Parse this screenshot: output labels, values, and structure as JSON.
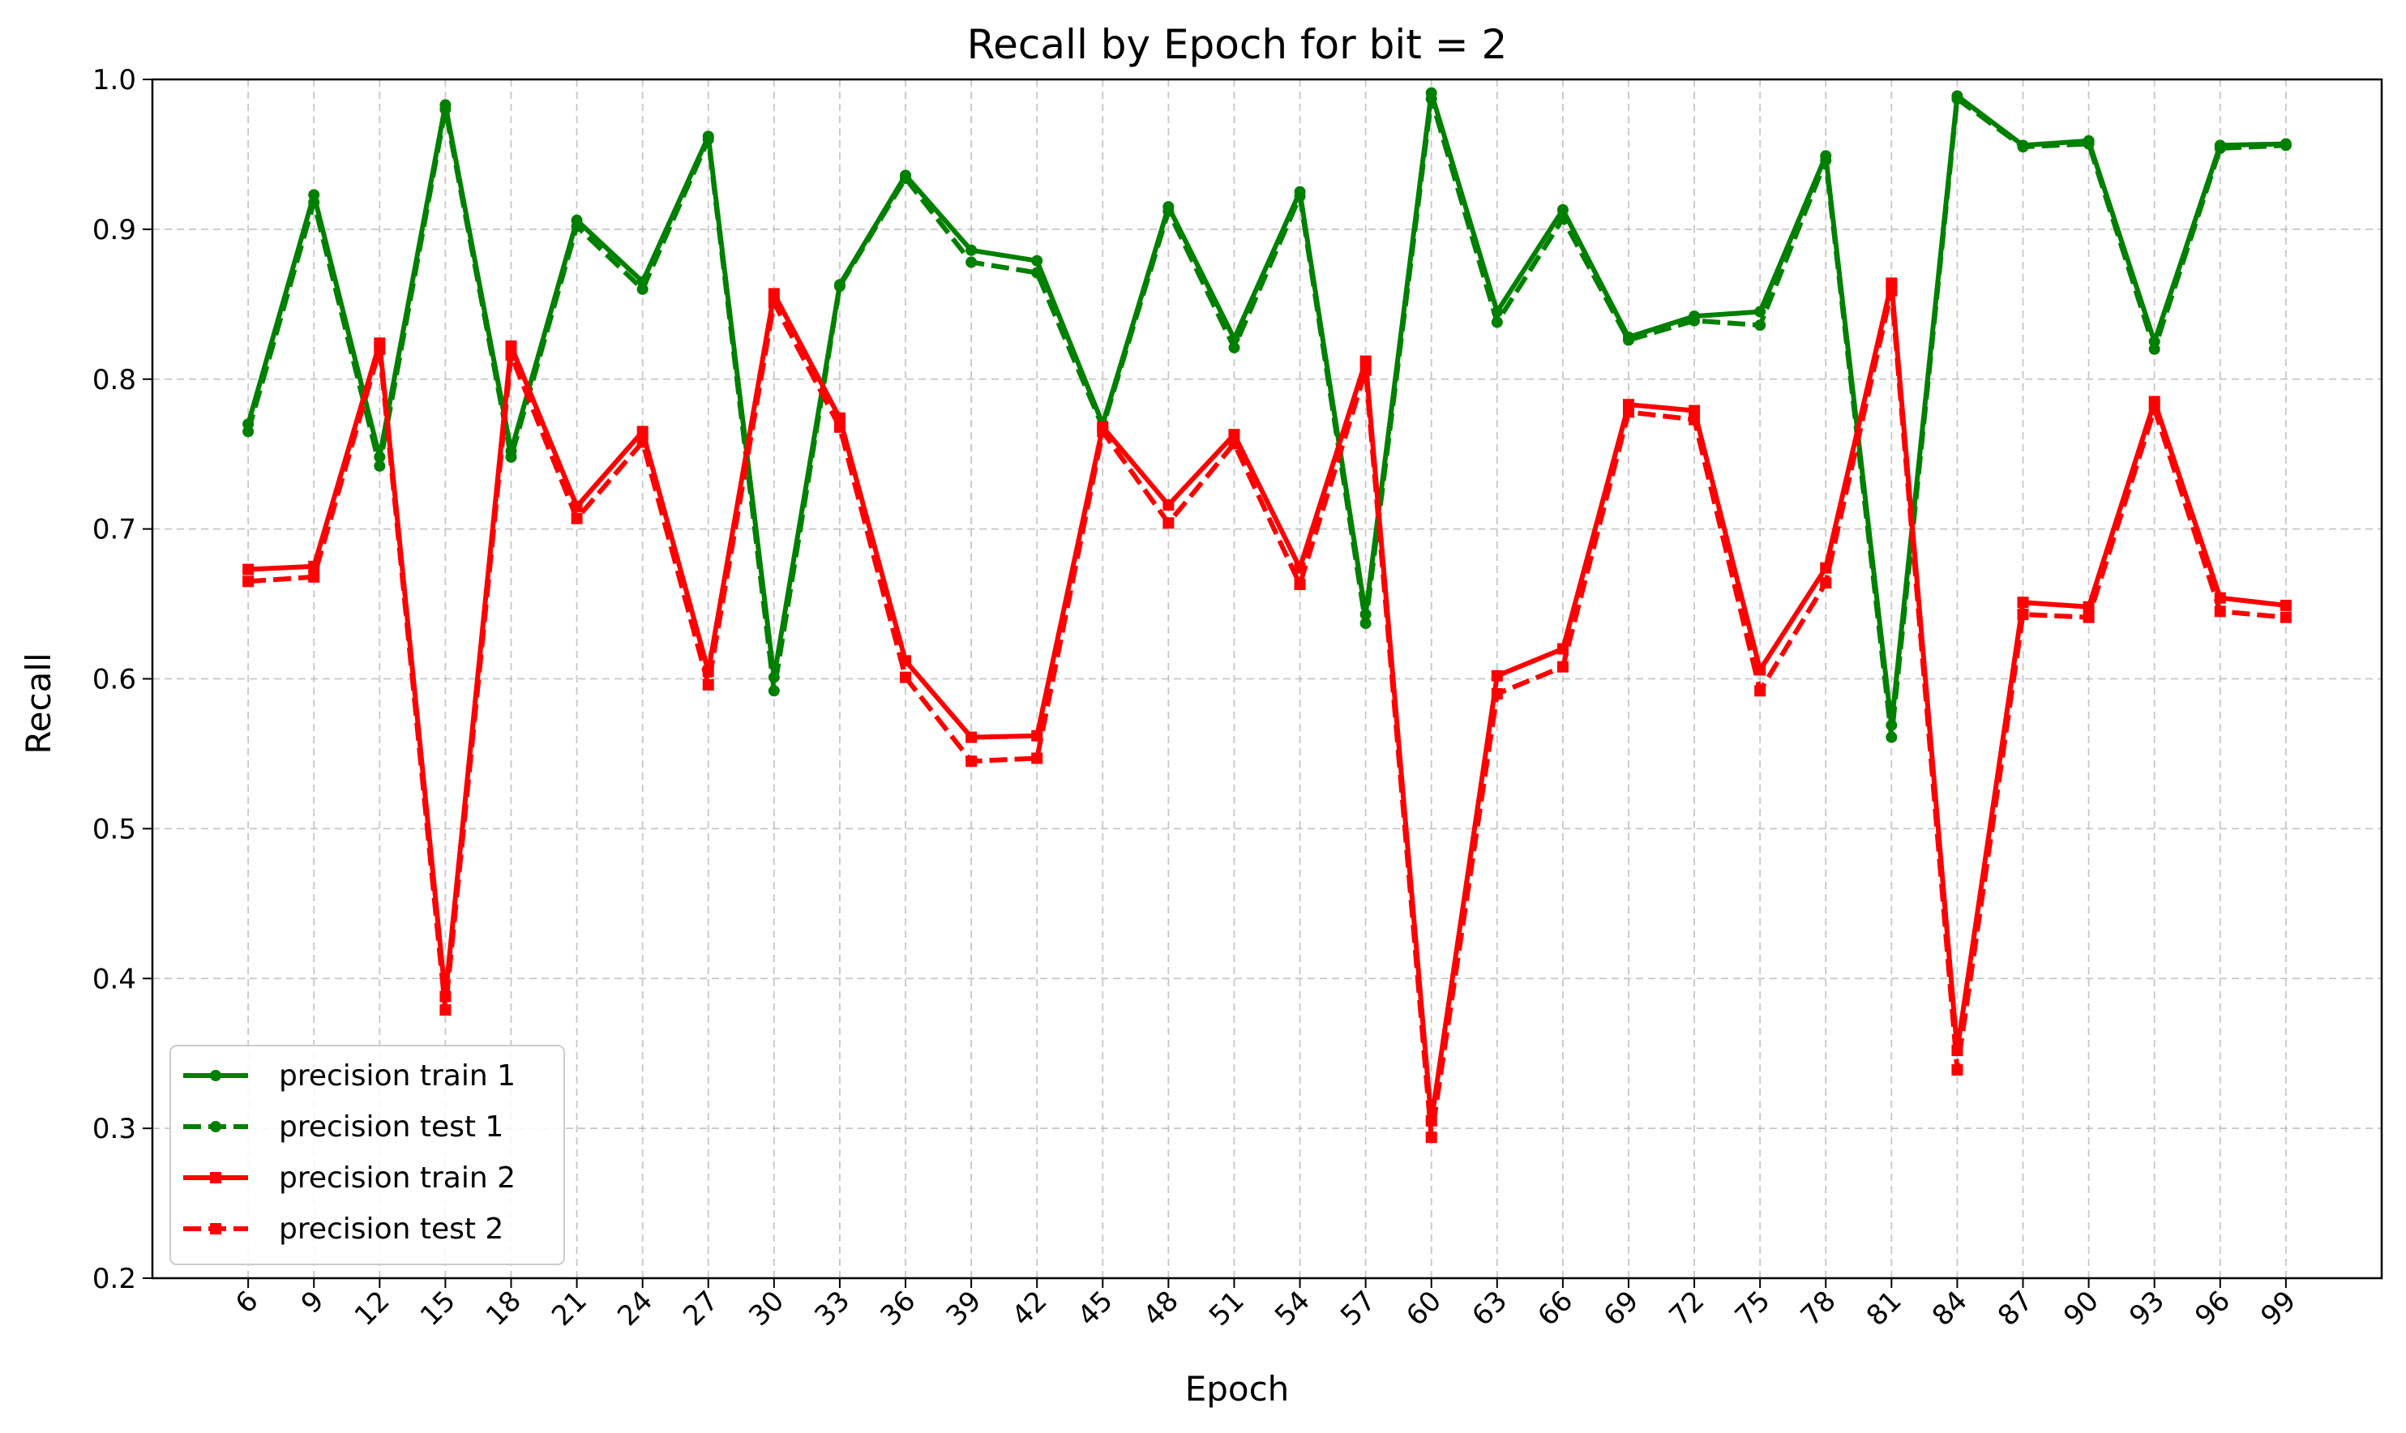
{
  "chart_data": {
    "type": "line",
    "title": "Recall by Epoch for bit = 2",
    "xlabel": "Epoch",
    "ylabel": "Recall",
    "ylim": [
      0.2,
      1.0
    ],
    "yticks": [
      "0.2",
      "0.3",
      "0.4",
      "0.5",
      "0.6",
      "0.7",
      "0.8",
      "0.9",
      "1.0"
    ],
    "grid": true,
    "legend_position": "lower-left",
    "x": [
      6,
      9,
      12,
      15,
      18,
      21,
      24,
      27,
      30,
      33,
      36,
      39,
      42,
      45,
      48,
      51,
      54,
      57,
      60,
      63,
      66,
      69,
      72,
      75,
      78,
      81,
      84,
      87,
      90,
      93,
      96,
      99
    ],
    "series": [
      {
        "name": "precision train 1",
        "color": "#008000",
        "dash": "solid",
        "marker": "circle",
        "values": [
          0.77,
          0.923,
          0.748,
          0.983,
          0.752,
          0.906,
          0.865,
          0.962,
          0.601,
          0.863,
          0.936,
          0.886,
          0.879,
          0.77,
          0.915,
          0.827,
          0.925,
          0.643,
          0.991,
          0.845,
          0.913,
          0.828,
          0.842,
          0.845,
          0.949,
          0.569,
          0.989,
          0.956,
          0.959,
          0.825,
          0.956,
          0.957
        ]
      },
      {
        "name": "precision test 1",
        "color": "#008000",
        "dash": "dashed",
        "marker": "circle",
        "values": [
          0.765,
          0.918,
          0.742,
          0.98,
          0.748,
          0.902,
          0.86,
          0.96,
          0.592,
          0.862,
          0.934,
          0.878,
          0.871,
          0.768,
          0.912,
          0.821,
          0.922,
          0.637,
          0.987,
          0.838,
          0.907,
          0.826,
          0.839,
          0.836,
          0.946,
          0.561,
          0.987,
          0.955,
          0.957,
          0.82,
          0.954,
          0.956
        ]
      },
      {
        "name": "precision train 2",
        "color": "#ff0000",
        "dash": "solid",
        "marker": "square",
        "values": [
          0.673,
          0.675,
          0.824,
          0.388,
          0.822,
          0.715,
          0.765,
          0.605,
          0.857,
          0.774,
          0.612,
          0.561,
          0.562,
          0.768,
          0.716,
          0.763,
          0.674,
          0.812,
          0.305,
          0.602,
          0.62,
          0.783,
          0.779,
          0.606,
          0.674,
          0.864,
          0.352,
          0.651,
          0.648,
          0.785,
          0.654,
          0.649
        ]
      },
      {
        "name": "precision test 2",
        "color": "#ff0000",
        "dash": "dashed",
        "marker": "square",
        "values": [
          0.665,
          0.668,
          0.82,
          0.379,
          0.816,
          0.707,
          0.758,
          0.596,
          0.851,
          0.768,
          0.601,
          0.545,
          0.547,
          0.765,
          0.704,
          0.757,
          0.663,
          0.806,
          0.294,
          0.59,
          0.608,
          0.778,
          0.773,
          0.592,
          0.664,
          0.859,
          0.339,
          0.643,
          0.641,
          0.78,
          0.645,
          0.641
        ]
      }
    ]
  }
}
